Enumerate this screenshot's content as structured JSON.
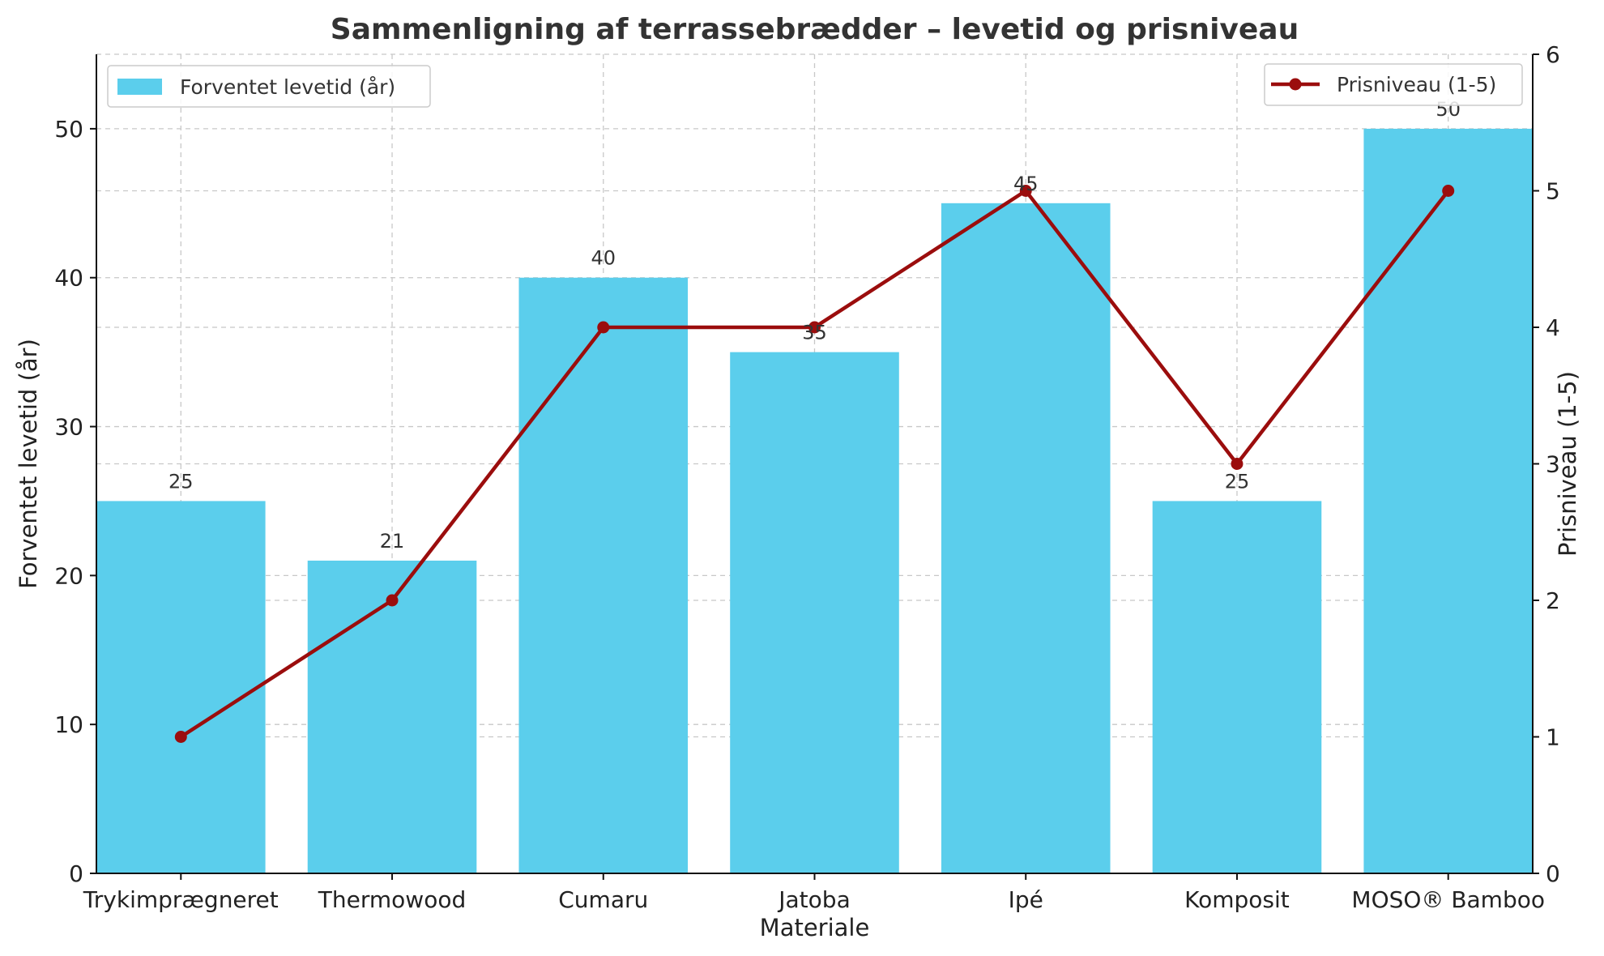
{
  "chart_data": {
    "type": "bar+line",
    "title": "Sammenligning af terrassebrædder – levetid og prisniveau",
    "xlabel": "Materiale",
    "ylabel_left": "Forventet levetid (år)",
    "ylabel_right": "Prisniveau (1-5)",
    "categories": [
      "Trykimprægneret",
      "Thermowood",
      "Cumaru",
      "Jatoba",
      "Ipé",
      "Komposit",
      "MOSO® Bamboo"
    ],
    "series": [
      {
        "name": "Forventet levetid (år)",
        "kind": "bar",
        "axis": "left",
        "color": "#5BCEEC",
        "values": [
          25,
          21,
          40,
          35,
          45,
          25,
          50
        ],
        "labels": [
          "25",
          "21",
          "40",
          "35",
          "45",
          "25",
          "50"
        ]
      },
      {
        "name": "Prisniveau (1-5)",
        "kind": "line",
        "axis": "right",
        "color": "#9B0D0D",
        "values": [
          1,
          2,
          4,
          4,
          5,
          3,
          5
        ]
      }
    ],
    "ylim_left": [
      0,
      55
    ],
    "yticks_left": [
      "0",
      "10",
      "20",
      "30",
      "40",
      "50"
    ],
    "ylim_right": [
      0,
      6
    ],
    "yticks_right": [
      "0",
      "1",
      "2",
      "3",
      "4",
      "5",
      "6"
    ],
    "grid": true,
    "legend_left_placement": "top-left",
    "legend_right_placement": "top-right"
  }
}
